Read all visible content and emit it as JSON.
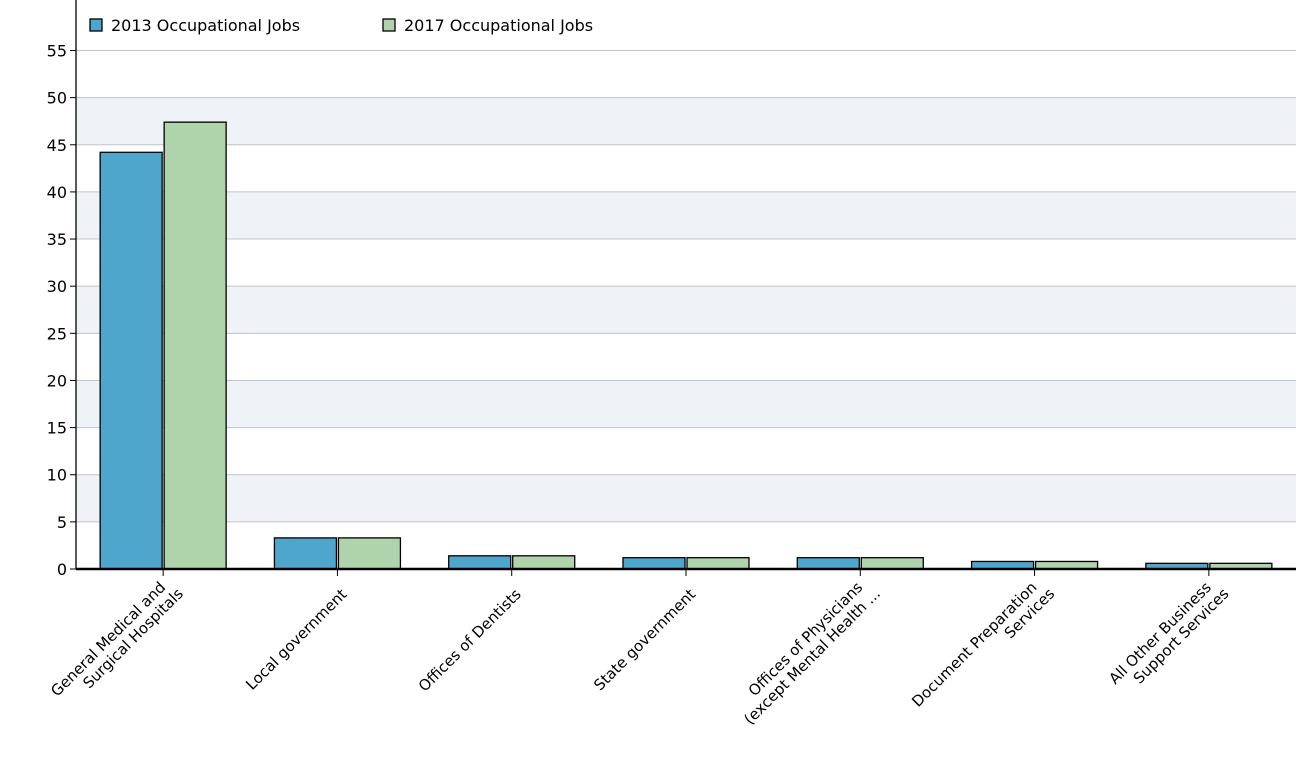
{
  "chart_data": {
    "type": "bar",
    "categories": [
      [
        "General Medical and",
        "Surgical Hospitals"
      ],
      [
        "Local government"
      ],
      [
        "Offices of Dentists"
      ],
      [
        "State government"
      ],
      [
        "Offices of Physicians",
        "(except Mental Health ..."
      ],
      [
        "Document Preparation",
        "Services"
      ],
      [
        "All Other Business",
        "Support Services"
      ]
    ],
    "series": [
      {
        "name": "2013 Occupational Jobs",
        "color": "#4ea6cc",
        "values": [
          44.2,
          3.3,
          1.4,
          1.2,
          1.2,
          0.8,
          0.6
        ]
      },
      {
        "name": "2017 Occupational Jobs",
        "color": "#afd3ab",
        "values": [
          47.4,
          3.3,
          1.4,
          1.2,
          1.2,
          0.8,
          0.6
        ]
      }
    ],
    "ylim": [
      0,
      55
    ],
    "yticks": [
      0,
      5,
      10,
      15,
      20,
      25,
      30,
      35,
      40,
      45,
      50,
      55
    ],
    "grid": true,
    "legend_position": "top-left",
    "band_color": "#eff2f7"
  }
}
